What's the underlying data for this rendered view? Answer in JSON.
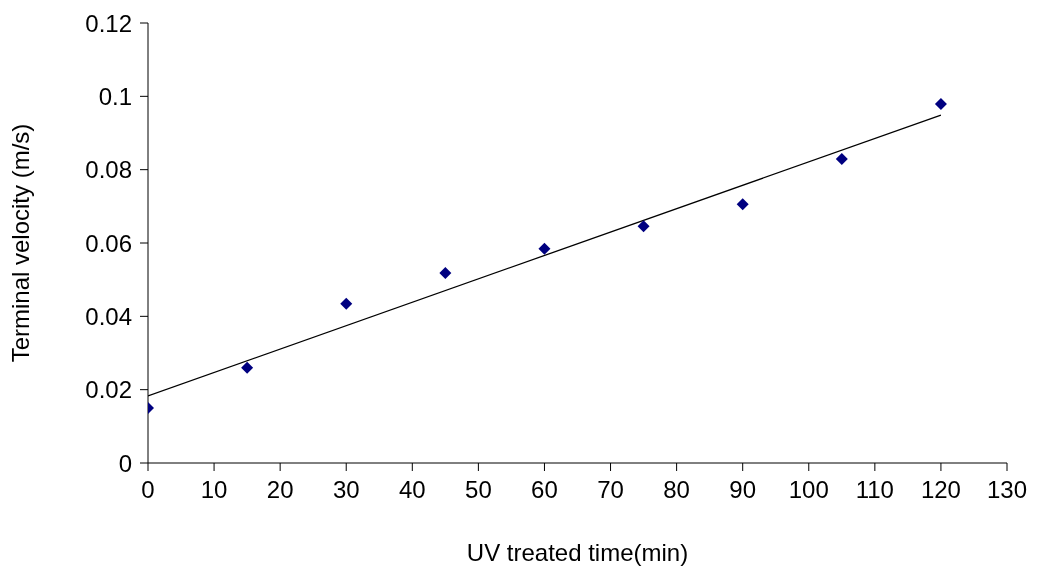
{
  "chart_data": {
    "type": "scatter",
    "xlabel": "UV treated time(min)",
    "ylabel": "Terminal velocity (m/s)",
    "x": [
      0,
      15,
      30,
      45,
      60,
      75,
      90,
      105,
      120
    ],
    "series": [
      {
        "marker": "diamond",
        "color": "#000080",
        "values": [
          0.015,
          0.026,
          0.0434,
          0.0518,
          0.0584,
          0.0646,
          0.0706,
          0.0829,
          0.0979
        ]
      },
      {
        "type": "line",
        "color": "#000000",
        "x": [
          0,
          120
        ],
        "values": [
          0.0183,
          0.0949
        ]
      }
    ],
    "xlim": [
      0,
      130
    ],
    "xticks": [
      0,
      10,
      20,
      30,
      40,
      50,
      60,
      70,
      80,
      90,
      100,
      110,
      120,
      130
    ],
    "ylim": [
      0,
      0.12
    ],
    "yticks": [
      0,
      0.02,
      0.04,
      0.06,
      0.08,
      0.1,
      0.12
    ],
    "grid": false,
    "legend": false
  }
}
